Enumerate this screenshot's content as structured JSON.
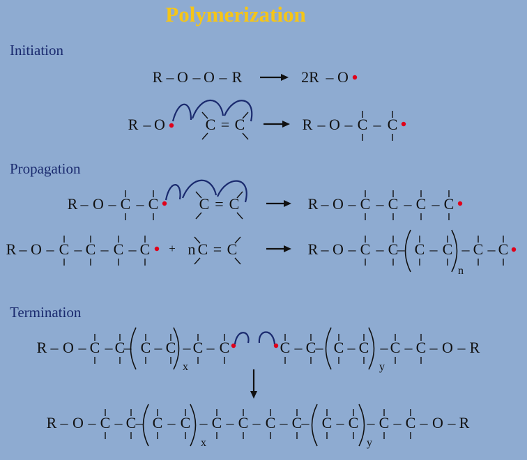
{
  "title": "Polymerization",
  "sections": {
    "initiation": "Initiation",
    "propagation": "Propagation",
    "termination": "Termination"
  },
  "symbols": {
    "carbon": "C",
    "r_group": "R",
    "oxygen": "O",
    "bond": "–",
    "double_bond": "=",
    "radical_count": "2R",
    "monomer_count": "n",
    "plus": "+",
    "sub_n": "n",
    "sub_x": "x",
    "sub_y": "y"
  },
  "colors": {
    "background": "#8eabd1",
    "title": "#f5c518",
    "section": "#1a2a6e",
    "radical_dot": "#e0001a",
    "curved_arrow": "#1a2a6e"
  }
}
